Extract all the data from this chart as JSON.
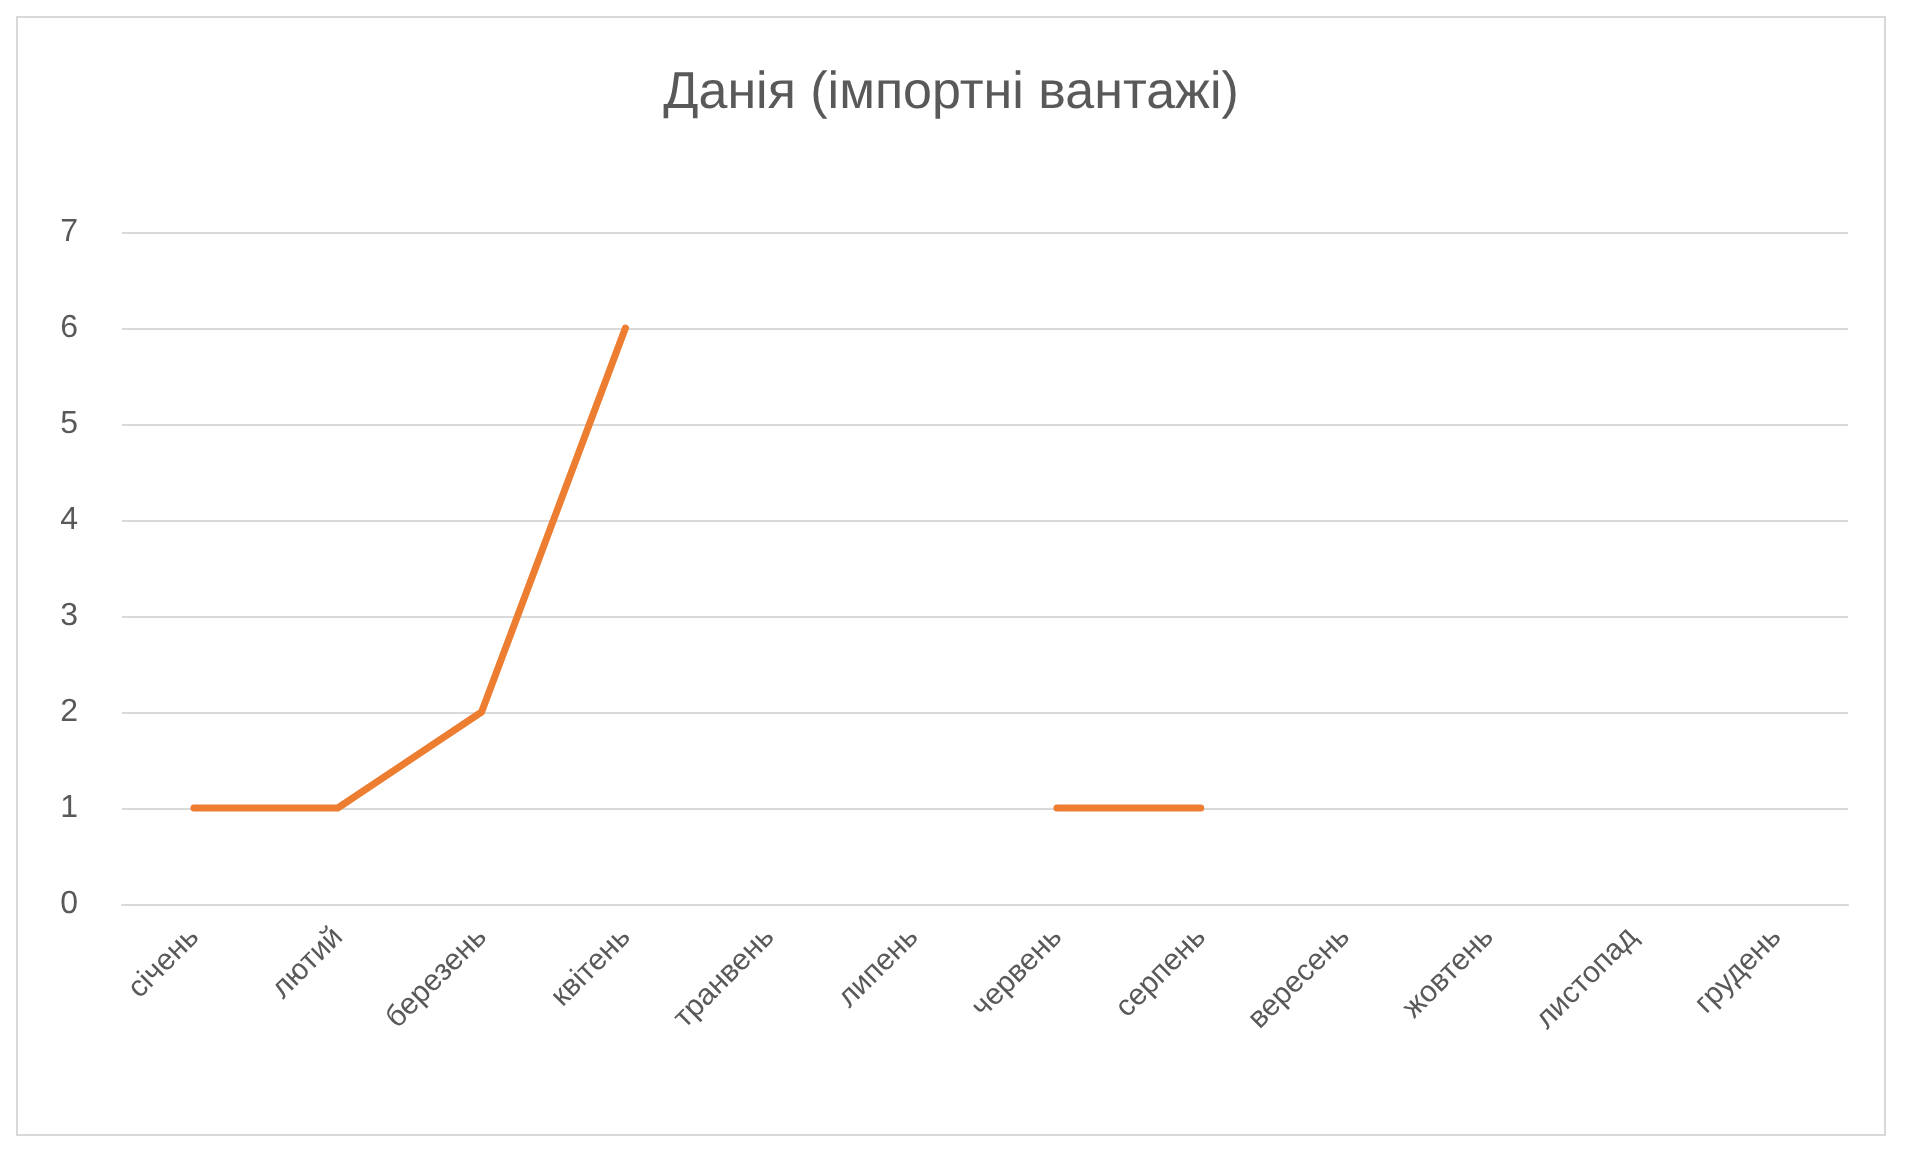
{
  "chart_data": {
    "type": "line",
    "title": "Данія (імпортні вантажі)",
    "categories": [
      "січень",
      "лютий",
      "березень",
      "квітень",
      "транвень",
      "липень",
      "червень",
      "серпень",
      "вересень",
      "жовтень",
      "листопад",
      "грудень"
    ],
    "series": [
      {
        "color": "#ed7d31",
        "values": [
          1,
          1,
          2,
          6,
          null,
          null,
          1,
          1,
          null,
          null,
          null,
          null
        ]
      }
    ],
    "ylim": [
      0,
      7
    ],
    "yticks": [
      0,
      1,
      2,
      3,
      4,
      5,
      6,
      7
    ],
    "grid": "y",
    "marker": "none",
    "line_style": "solid"
  }
}
